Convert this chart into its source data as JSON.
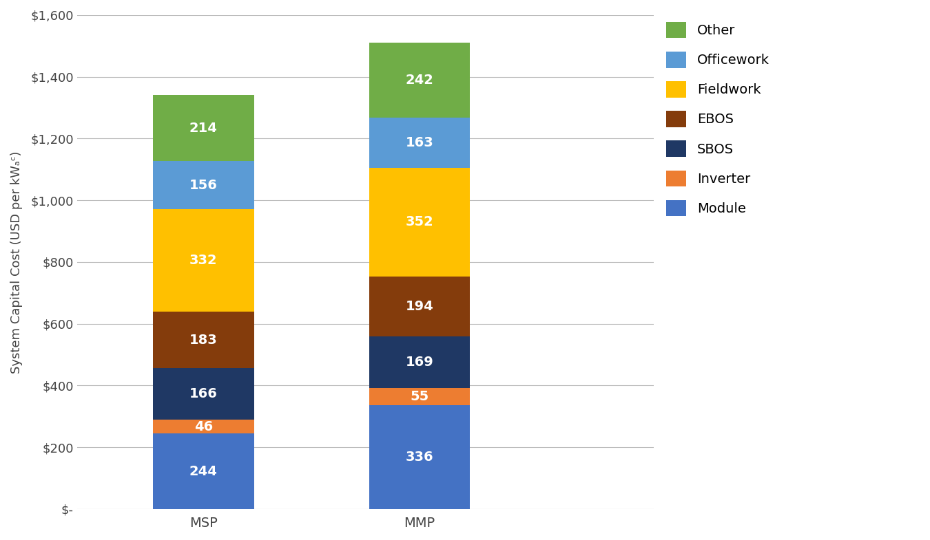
{
  "categories": [
    "MSP",
    "MMP"
  ],
  "series": [
    {
      "label": "Module",
      "values": [
        244,
        336
      ],
      "color": "#4472C4"
    },
    {
      "label": "Inverter",
      "values": [
        46,
        55
      ],
      "color": "#ED7D31"
    },
    {
      "label": "SBOS",
      "values": [
        166,
        169
      ],
      "color": "#1F3864"
    },
    {
      "label": "EBOS",
      "values": [
        183,
        194
      ],
      "color": "#843C0C"
    },
    {
      "label": "Fieldwork",
      "values": [
        332,
        352
      ],
      "color": "#FFC000"
    },
    {
      "label": "Officework",
      "values": [
        156,
        163
      ],
      "color": "#5B9BD5"
    },
    {
      "label": "Other",
      "values": [
        214,
        242
      ],
      "color": "#70AD47"
    }
  ],
  "ylabel": "System Capital Cost (USD per kWₐᶜ)",
  "ylim": [
    0,
    1600
  ],
  "yticks": [
    0,
    200,
    400,
    600,
    800,
    1000,
    1200,
    1400,
    1600
  ],
  "ytick_labels": [
    "$-",
    "$200",
    "$400",
    "$600",
    "$800",
    "$1,000",
    "$1,200",
    "$1,400",
    "$1,600"
  ],
  "bar_width": 0.28,
  "label_color": "#FFFFFF",
  "label_fontsize": 14,
  "legend_fontsize": 14,
  "ylabel_fontsize": 13,
  "tick_fontsize": 13,
  "background_color": "#FFFFFF",
  "grid_color": "#BBBBBB",
  "x_positions": [
    0.3,
    0.9
  ]
}
